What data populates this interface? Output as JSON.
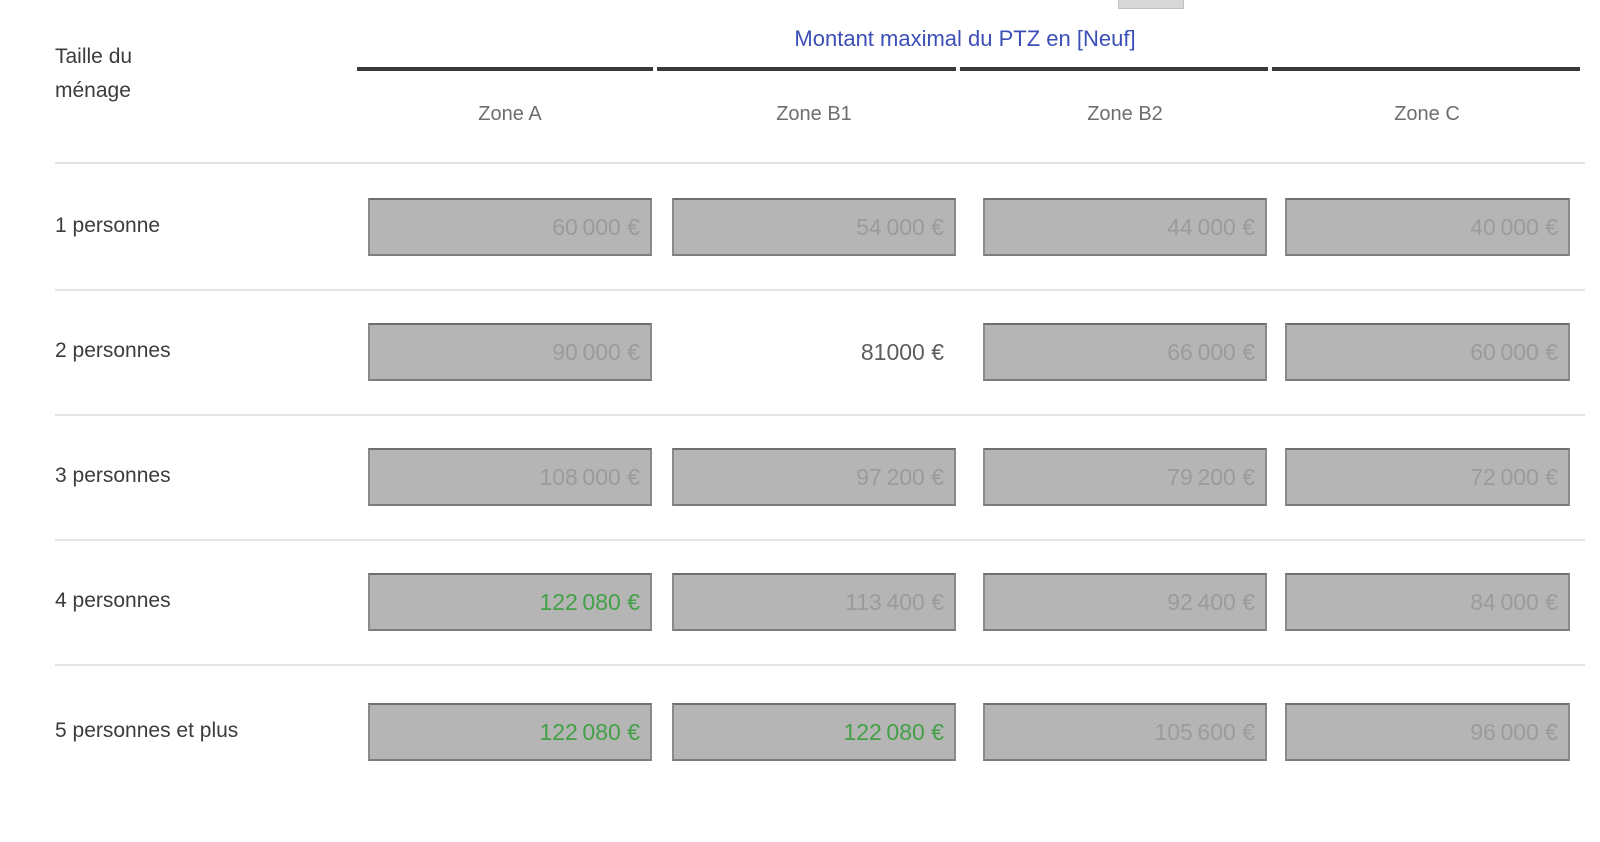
{
  "title": "Montant maximal du PTZ en [Neuf]",
  "row_header": {
    "line1": "Taille du",
    "line2": "ménage"
  },
  "columns": [
    "Zone A",
    "Zone B1",
    "Zone B2",
    "Zone C"
  ],
  "rows": [
    {
      "label": "1 personne",
      "cells": [
        {
          "value": "60 000 €",
          "state": "readonly"
        },
        {
          "value": "54 000 €",
          "state": "readonly"
        },
        {
          "value": "44 000 €",
          "state": "readonly"
        },
        {
          "value": "40 000 €",
          "state": "readonly"
        }
      ]
    },
    {
      "label": "2 personnes",
      "cells": [
        {
          "value": "90 000 €",
          "state": "readonly"
        },
        {
          "value": "81000 €",
          "state": "editable"
        },
        {
          "value": "66 000 €",
          "state": "readonly"
        },
        {
          "value": "60 000 €",
          "state": "readonly"
        }
      ]
    },
    {
      "label": "3 personnes",
      "cells": [
        {
          "value": "108 000 €",
          "state": "readonly"
        },
        {
          "value": "97 200 €",
          "state": "readonly"
        },
        {
          "value": "79 200 €",
          "state": "readonly"
        },
        {
          "value": "72 000 €",
          "state": "readonly"
        }
      ]
    },
    {
      "label": "4 personnes",
      "cells": [
        {
          "value": "122 080 €",
          "state": "highlight"
        },
        {
          "value": "113 400 €",
          "state": "readonly"
        },
        {
          "value": "92 400 €",
          "state": "readonly"
        },
        {
          "value": "84 000 €",
          "state": "readonly"
        }
      ]
    },
    {
      "label": "5 personnes et plus",
      "cells": [
        {
          "value": "122 080 €",
          "state": "highlight"
        },
        {
          "value": "122 080 €",
          "state": "highlight"
        },
        {
          "value": "105 600 €",
          "state": "readonly"
        },
        {
          "value": "96 000 €",
          "state": "readonly"
        }
      ]
    }
  ],
  "colors": {
    "title_blue": "#3d4fb7",
    "highlight_green": "#43a047",
    "field_gray": "#b5b5b5",
    "field_border": "#8a8a8a",
    "divider": "#e4e4e4"
  }
}
